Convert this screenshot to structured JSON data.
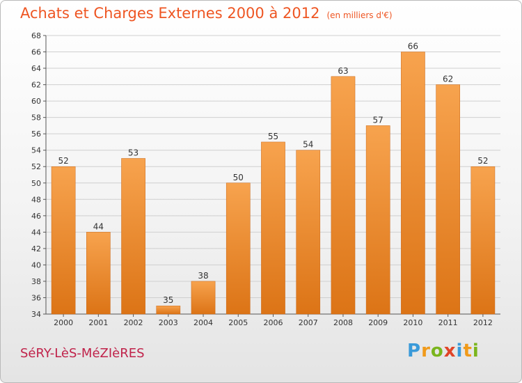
{
  "title": "Achats et Charges Externes 2000 à 2012",
  "subtitle": "(en milliers d'€)",
  "location": "SéRY-LèS-MéZIèRES",
  "logo": {
    "letters": [
      {
        "char": "P",
        "color": "#3a9ad9"
      },
      {
        "char": "r",
        "color": "#f09a1a"
      },
      {
        "char": "o",
        "color": "#7ab51d"
      },
      {
        "char": "x",
        "color": "#e04427"
      },
      {
        "char": "i",
        "color": "#3a9ad9"
      },
      {
        "char": "t",
        "color": "#f09a1a"
      },
      {
        "char": "i",
        "color": "#7ab51d"
      }
    ]
  },
  "colors": {
    "bar_top": "#f7a34e",
    "bar_bottom": "#dc7416",
    "title": "#ee5522",
    "location": "#c0224a"
  },
  "chart_data": {
    "type": "bar",
    "title": "Achats et Charges Externes 2000 à 2012",
    "subtitle": "(en milliers d'€)",
    "categories": [
      "2000",
      "2001",
      "2002",
      "2003",
      "2004",
      "2005",
      "2006",
      "2007",
      "2008",
      "2009",
      "2010",
      "2011",
      "2012"
    ],
    "values": [
      52,
      44,
      53,
      35,
      38,
      50,
      55,
      54,
      63,
      57,
      66,
      62,
      52
    ],
    "ylim": [
      34,
      68
    ],
    "yticks": [
      34,
      36,
      38,
      40,
      42,
      44,
      46,
      48,
      50,
      52,
      54,
      56,
      58,
      60,
      62,
      64,
      66,
      68
    ],
    "grid": true,
    "xlabel": "",
    "ylabel": ""
  }
}
